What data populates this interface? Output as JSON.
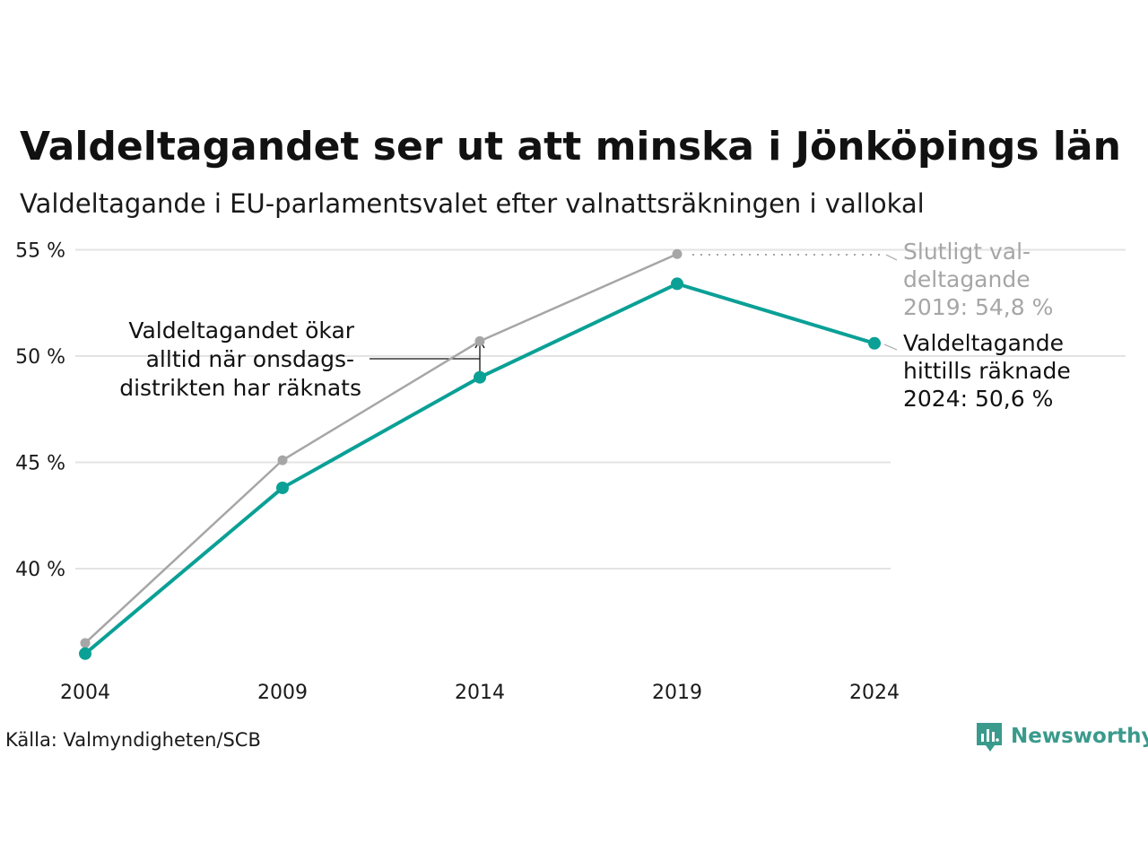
{
  "colors": {
    "teal": "#0aa096",
    "grey": "#a6a6a6",
    "grid": "#e3e3e3",
    "brand": "#3a9a8c"
  },
  "chart_data": {
    "type": "line",
    "title": "Valdeltagandet ser ut att minska i Jönköpings län",
    "subtitle": "Valdeltagande i EU-parlamentsvalet efter valnattsräkningen i vallokal",
    "x": [
      "2004",
      "2009",
      "2014",
      "2019",
      "2024"
    ],
    "yticks": [
      "55 %",
      "50 %",
      "45 %",
      "40 %"
    ],
    "ytick_values": [
      55,
      50,
      45,
      40
    ],
    "ylim": [
      35,
      55.2
    ],
    "grid": true,
    "series": [
      {
        "color": "#a6a6a6",
        "values": [
          36.5,
          45.1,
          50.7,
          54.8,
          null
        ]
      },
      {
        "color": "#0aa096",
        "values": [
          36.0,
          43.8,
          49.0,
          53.4,
          50.6
        ]
      }
    ],
    "annotations": {
      "wednesday_note": [
        "Valdeltagandet ökar",
        "alltid när onsdags-",
        "distrikten har räknats"
      ],
      "final_2019": [
        "Slutligt val-",
        "deltagande",
        "2019: 54,8 %"
      ],
      "counted_2024": [
        "Valdeltagande",
        "hittills räknade",
        "2024: 50,6 %"
      ]
    }
  },
  "source": "Källa: Valmyndigheten/SCB",
  "brand": {
    "name": "Newsworthy",
    "icon": "newsworthy-logo-icon"
  }
}
